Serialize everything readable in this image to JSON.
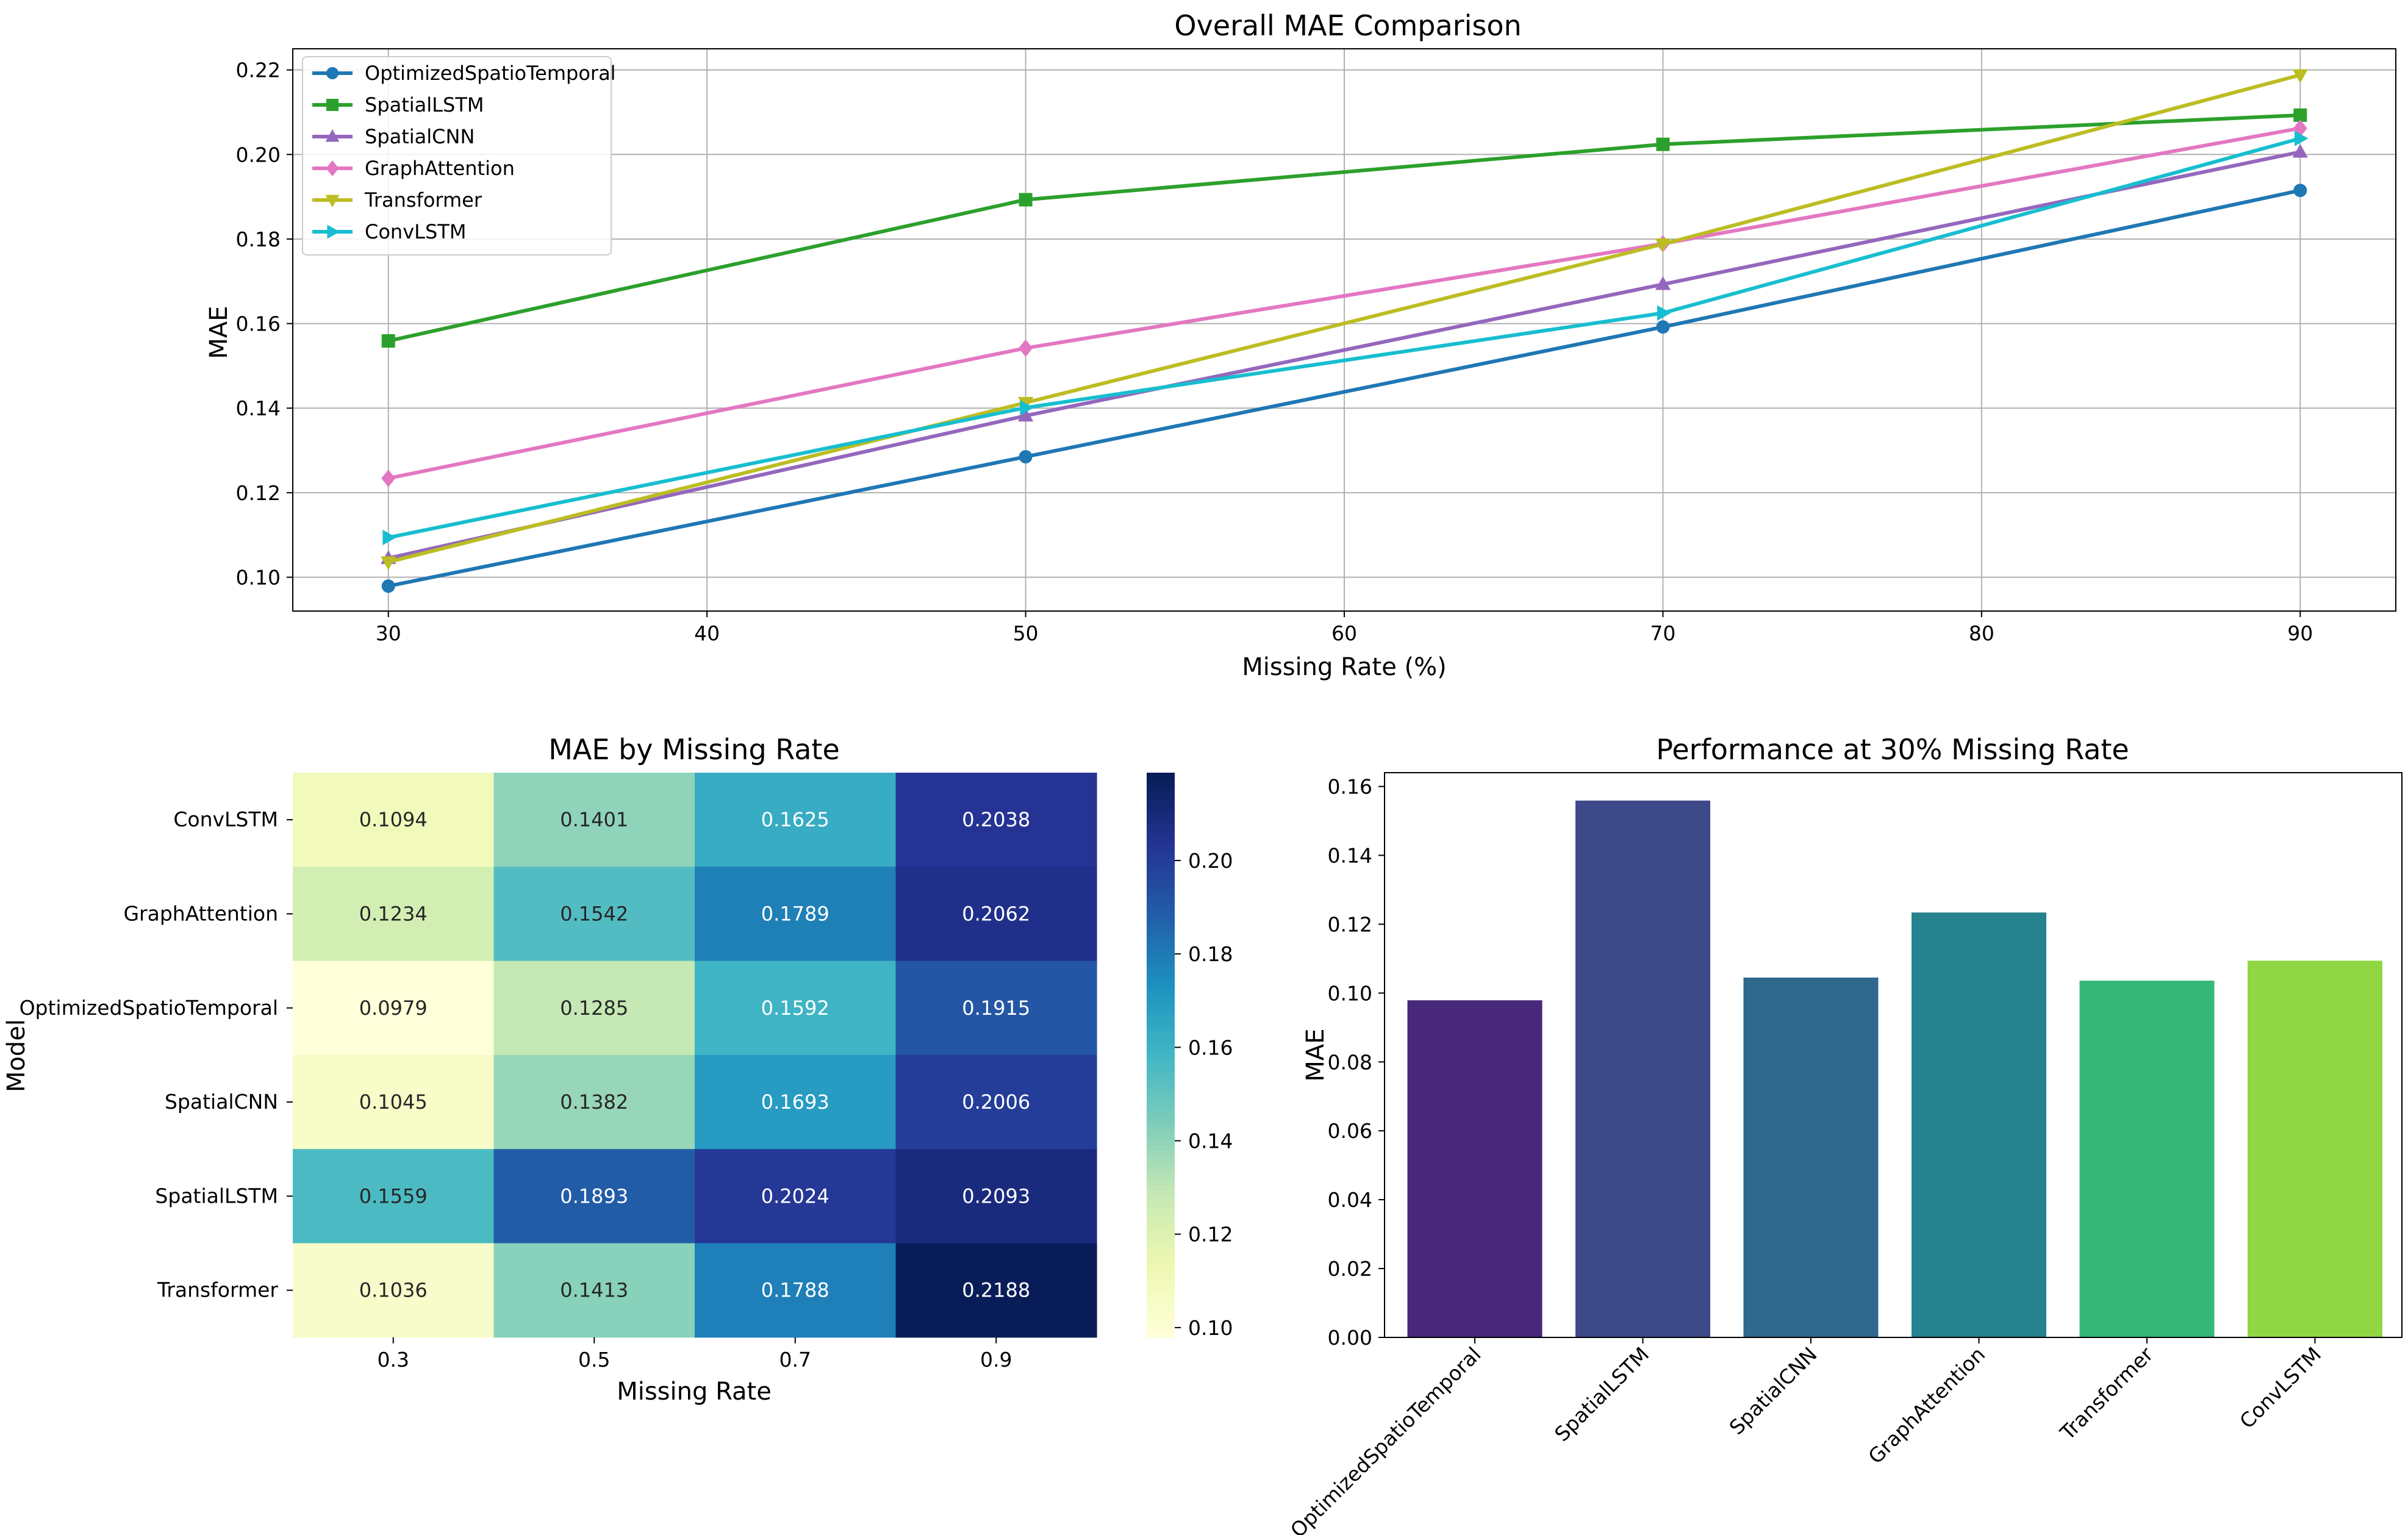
{
  "chart_data": [
    {
      "type": "line",
      "title": "Overall MAE Comparison",
      "xlabel": "Missing Rate (%)",
      "ylabel": "MAE",
      "x": [
        30,
        50,
        70,
        90
      ],
      "xlim": [
        27,
        93
      ],
      "ylim": [
        0.092,
        0.225
      ],
      "xticks": [
        30,
        40,
        50,
        60,
        70,
        80,
        90
      ],
      "yticks": [
        0.1,
        0.12,
        0.14,
        0.16,
        0.18,
        0.2,
        0.22
      ],
      "ytick_labels": [
        "0.10",
        "0.12",
        "0.14",
        "0.16",
        "0.18",
        "0.20",
        "0.22"
      ],
      "grid": true,
      "legend_position": "upper-left",
      "series": [
        {
          "name": "OptimizedSpatioTemporal",
          "values": [
            0.0979,
            0.1285,
            0.1592,
            0.1915
          ],
          "color": "#1f77b4",
          "marker": "circle"
        },
        {
          "name": "SpatialLSTM",
          "values": [
            0.1559,
            0.1893,
            0.2024,
            0.2093
          ],
          "color": "#2ca02c",
          "marker": "square"
        },
        {
          "name": "SpatialCNN",
          "values": [
            0.1045,
            0.1382,
            0.1693,
            0.2006
          ],
          "color": "#9467bd",
          "marker": "triangle-up"
        },
        {
          "name": "GraphAttention",
          "values": [
            0.1234,
            0.1542,
            0.1789,
            0.2062
          ],
          "color": "#e377c2",
          "marker": "diamond"
        },
        {
          "name": "Transformer",
          "values": [
            0.1036,
            0.1413,
            0.1788,
            0.2188
          ],
          "color": "#bcbd22",
          "marker": "triangle-down"
        },
        {
          "name": "ConvLSTM",
          "values": [
            0.1094,
            0.1401,
            0.1625,
            0.2038
          ],
          "color": "#17becf",
          "marker": "triangle-right"
        }
      ]
    },
    {
      "type": "heatmap",
      "title": "MAE by Missing Rate",
      "xlabel": "Missing Rate",
      "ylabel": "Model",
      "columns": [
        "0.3",
        "0.5",
        "0.7",
        "0.9"
      ],
      "rows": [
        "ConvLSTM",
        "GraphAttention",
        "OptimizedSpatioTemporal",
        "SpatialCNN",
        "SpatialLSTM",
        "Transformer"
      ],
      "values": [
        [
          0.1094,
          0.1401,
          0.1625,
          0.2038
        ],
        [
          0.1234,
          0.1542,
          0.1789,
          0.2062
        ],
        [
          0.0979,
          0.1285,
          0.1592,
          0.1915
        ],
        [
          0.1045,
          0.1382,
          0.1693,
          0.2006
        ],
        [
          0.1559,
          0.1893,
          0.2024,
          0.2093
        ],
        [
          0.1036,
          0.1413,
          0.1788,
          0.2188
        ]
      ],
      "value_labels": [
        [
          "0.1094",
          "0.1401",
          "0.1625",
          "0.2038"
        ],
        [
          "0.1234",
          "0.1542",
          "0.1789",
          "0.2062"
        ],
        [
          "0.0979",
          "0.1285",
          "0.1592",
          "0.1915"
        ],
        [
          "0.1045",
          "0.1382",
          "0.1693",
          "0.2006"
        ],
        [
          "0.1559",
          "0.1893",
          "0.2024",
          "0.2093"
        ],
        [
          "0.1036",
          "0.1413",
          "0.1788",
          "0.2188"
        ]
      ],
      "colormap": "YlGnBu",
      "vmin": 0.0979,
      "vmax": 0.2188,
      "colorbar_ticks": [
        0.1,
        0.12,
        0.14,
        0.16,
        0.18,
        0.2
      ],
      "colorbar_tick_labels": [
        "0.10",
        "0.12",
        "0.14",
        "0.16",
        "0.18",
        "0.20"
      ]
    },
    {
      "type": "bar",
      "title": "Performance at 30% Missing Rate",
      "xlabel": "",
      "ylabel": "MAE",
      "categories": [
        "OptimizedSpatioTemporal",
        "SpatialLSTM",
        "SpatialCNN",
        "GraphAttention",
        "Transformer",
        "ConvLSTM"
      ],
      "values": [
        0.0979,
        0.1559,
        0.1045,
        0.1234,
        0.1036,
        0.1094
      ],
      "colors": [
        "#482878",
        "#3e4989",
        "#31688e",
        "#26828e",
        "#35b779",
        "#90d743"
      ],
      "ylim": [
        0,
        0.164
      ],
      "yticks": [
        0.0,
        0.02,
        0.04,
        0.06,
        0.08,
        0.1,
        0.12,
        0.14,
        0.16
      ],
      "ytick_labels": [
        "0.00",
        "0.02",
        "0.04",
        "0.06",
        "0.08",
        "0.10",
        "0.12",
        "0.14",
        "0.16"
      ],
      "grid": false
    }
  ]
}
